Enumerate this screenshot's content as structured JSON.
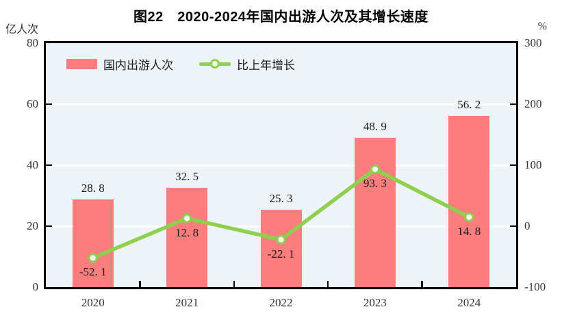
{
  "chart_data": {
    "type": "bar",
    "title": "图22　2020-2024年国内出游人次及其增长速度",
    "categories": [
      "2020",
      "2021",
      "2022",
      "2023",
      "2024"
    ],
    "series": [
      {
        "name": "国内出游人次",
        "type": "bar",
        "axis": "left",
        "color": "#fc7d7d",
        "values": [
          28.8,
          32.5,
          25.3,
          48.9,
          56.2
        ]
      },
      {
        "name": "比上年增长",
        "type": "line",
        "axis": "right",
        "color": "#8ed04e",
        "marker_fill": "#ffffff",
        "values": [
          -52.1,
          12.8,
          -22.1,
          93.3,
          14.8
        ]
      }
    ],
    "left_axis": {
      "unit": "亿人次",
      "min": 0,
      "max": 80,
      "ticks": [
        80,
        60,
        40,
        20,
        0
      ]
    },
    "right_axis": {
      "unit": "%",
      "min": -100,
      "max": 300,
      "ticks": [
        300,
        200,
        100,
        0,
        -100
      ]
    },
    "gridline_values": [
      60,
      40,
      20
    ],
    "grid_color": "#ffffff",
    "plot_bg": "#edf3f7",
    "axis_color": "#000000",
    "legend_position": "top-left-inside"
  }
}
